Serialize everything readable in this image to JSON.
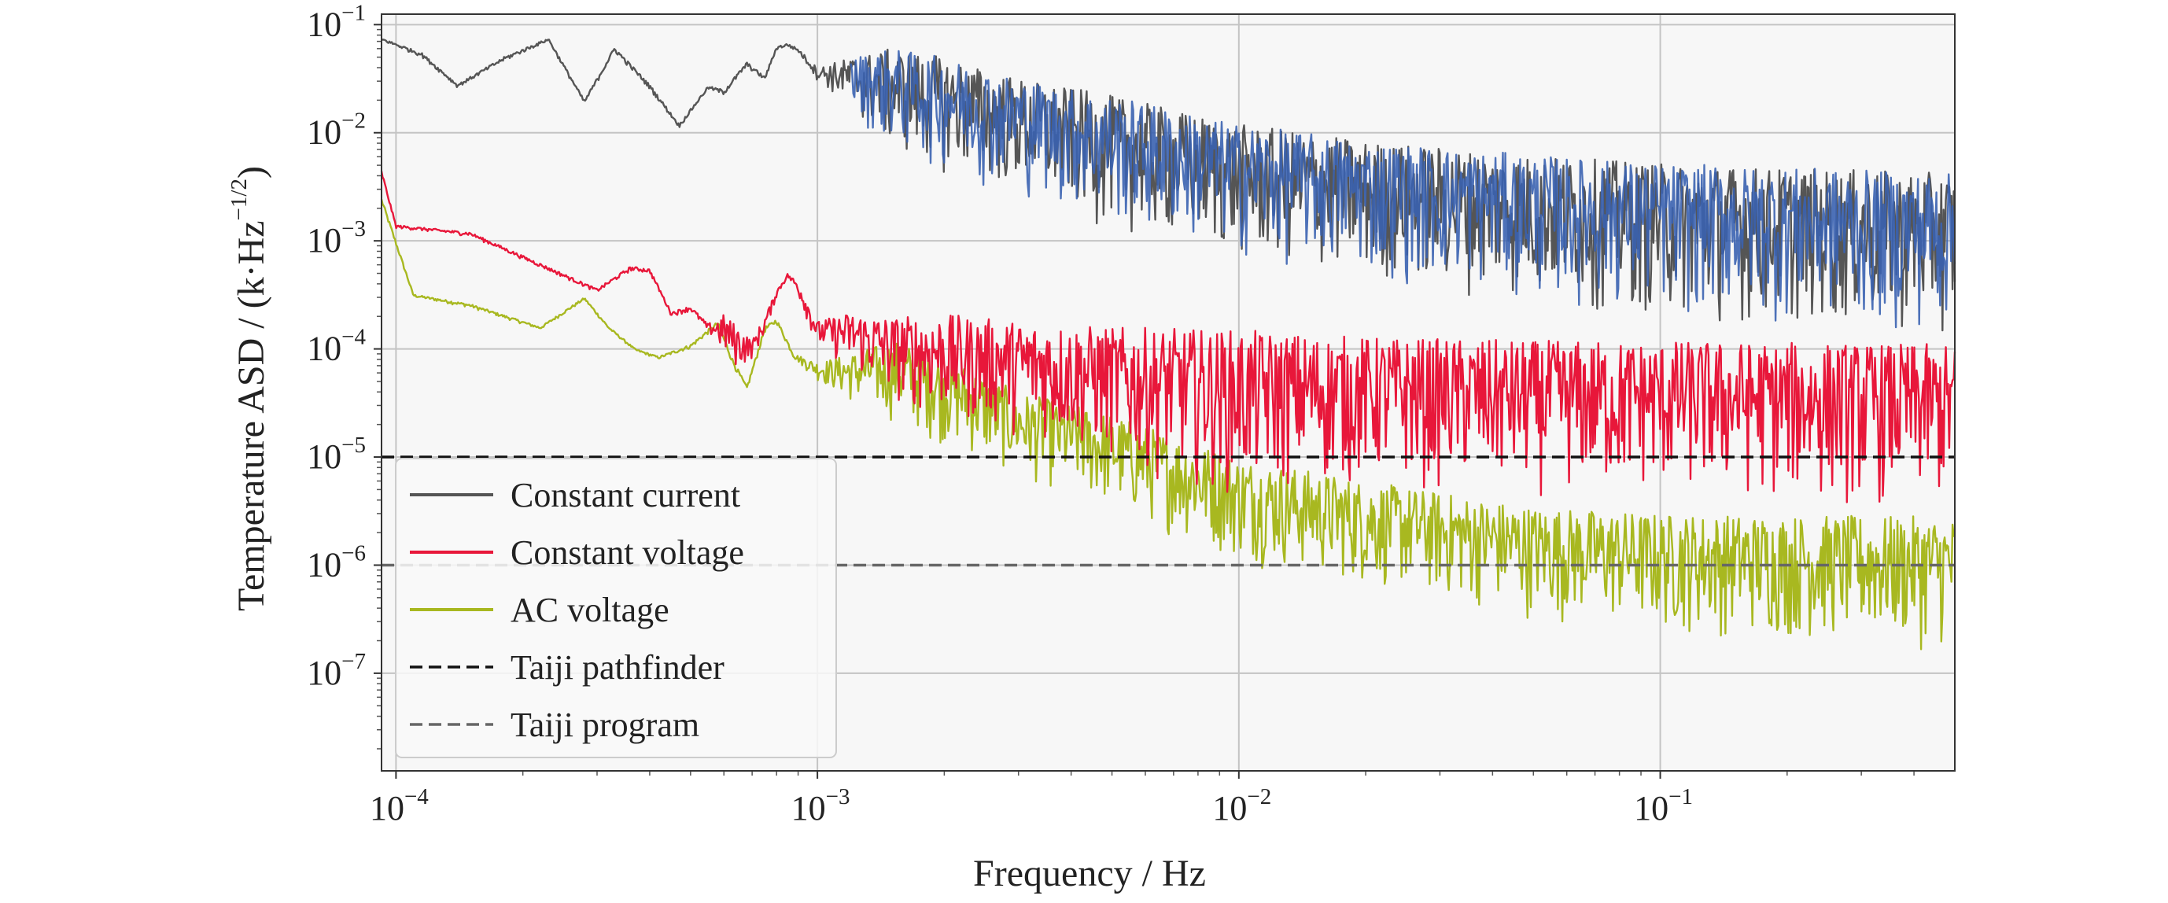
{
  "chart_data": {
    "type": "line",
    "title": "",
    "xlabel": "Frequency / Hz",
    "ylabel": {
      "text": "Temperature ASD / (k·Hz",
      "exponent": "−1/2",
      "close": ")"
    },
    "x_scale": "log",
    "y_scale": "log",
    "xlim": [
      9.24e-05,
      0.5
    ],
    "ylim": [
      1.25e-08,
      0.125
    ],
    "grid": true,
    "legend_position": "lower-left",
    "x_ticks": [
      {
        "value": 0.0001,
        "base": "10",
        "exp": "−4"
      },
      {
        "value": 0.001,
        "base": "10",
        "exp": "−3"
      },
      {
        "value": 0.01,
        "base": "10",
        "exp": "−2"
      },
      {
        "value": 0.1,
        "base": "10",
        "exp": "−1"
      }
    ],
    "y_ticks": [
      {
        "value": 0.1,
        "base": "10",
        "exp": "−1"
      },
      {
        "value": 0.01,
        "base": "10",
        "exp": "−2"
      },
      {
        "value": 0.001,
        "base": "10",
        "exp": "−3"
      },
      {
        "value": 0.0001,
        "base": "10",
        "exp": "−4"
      },
      {
        "value": 1e-05,
        "base": "10",
        "exp": "−5"
      },
      {
        "value": 1e-06,
        "base": "10",
        "exp": "−6"
      },
      {
        "value": 1e-07,
        "base": "10",
        "exp": "−7"
      }
    ],
    "series": [
      {
        "name": "Constant current",
        "color": "#555555",
        "upper": [
          [
            9.24e-05,
            0.075
          ],
          [
            0.000115,
            0.055
          ],
          [
            0.00014,
            0.028
          ],
          [
            0.00018,
            0.05
          ],
          [
            0.00023,
            0.075
          ],
          [
            0.00028,
            0.02
          ],
          [
            0.00033,
            0.062
          ],
          [
            0.0004,
            0.028
          ],
          [
            0.00047,
            0.012
          ],
          [
            0.00055,
            0.027
          ],
          [
            0.0006,
            0.025
          ],
          [
            0.00068,
            0.045
          ],
          [
            0.00075,
            0.033
          ],
          [
            0.0008,
            0.063
          ],
          [
            0.00085,
            0.067
          ],
          [
            0.0009,
            0.06
          ],
          [
            0.001,
            0.04
          ],
          [
            0.0012,
            0.05
          ],
          [
            0.0015,
            0.06
          ],
          [
            0.002,
            0.05
          ],
          [
            0.003,
            0.032
          ],
          [
            0.005,
            0.022
          ],
          [
            0.01,
            0.012
          ],
          [
            0.02,
            0.0085
          ],
          [
            0.05,
            0.0062
          ],
          [
            0.1,
            0.0052
          ],
          [
            0.5,
            0.0042
          ]
        ],
        "lower": [
          [
            9.24e-05,
            0.07
          ],
          [
            0.000115,
            0.05
          ],
          [
            0.00014,
            0.026
          ],
          [
            0.00018,
            0.045
          ],
          [
            0.00023,
            0.07
          ],
          [
            0.00028,
            0.018
          ],
          [
            0.00033,
            0.055
          ],
          [
            0.0004,
            0.025
          ],
          [
            0.00047,
            0.011
          ],
          [
            0.00055,
            0.025
          ],
          [
            0.0006,
            0.022
          ],
          [
            0.00068,
            0.04
          ],
          [
            0.00075,
            0.03
          ],
          [
            0.0008,
            0.058
          ],
          [
            0.00085,
            0.062
          ],
          [
            0.0009,
            0.055
          ],
          [
            0.001,
            0.03
          ],
          [
            0.0012,
            0.015
          ],
          [
            0.0015,
            0.006
          ],
          [
            0.002,
            0.004
          ],
          [
            0.003,
            0.0025
          ],
          [
            0.005,
            0.0012
          ],
          [
            0.01,
            0.0006
          ],
          [
            0.02,
            0.0004
          ],
          [
            0.05,
            0.00025
          ],
          [
            0.1,
            0.00018
          ],
          [
            0.5,
            0.00012
          ]
        ]
      },
      {
        "name": "Constant voltage",
        "color": "#e8173a",
        "upper": [
          [
            9.24e-05,
            0.0045
          ],
          [
            0.0001,
            0.0014
          ],
          [
            0.00015,
            0.0012
          ],
          [
            0.0003,
            0.00036
          ],
          [
            0.00036,
            0.00058
          ],
          [
            0.0004,
            0.00055
          ],
          [
            0.00045,
            0.00022
          ],
          [
            0.0005,
            0.00025
          ],
          [
            0.00055,
            0.00017
          ],
          [
            0.0006,
            0.00021
          ],
          [
            0.00065,
            0.00016
          ],
          [
            0.0007,
            0.00012
          ],
          [
            0.00075,
            0.0002
          ],
          [
            0.0008,
            0.00035
          ],
          [
            0.00085,
            0.0005
          ],
          [
            0.0009,
            0.00042
          ],
          [
            0.001,
            0.00018
          ],
          [
            0.0012,
            0.00022
          ],
          [
            0.0015,
            0.0002
          ],
          [
            0.002,
            0.00021
          ],
          [
            0.003,
            0.00018
          ],
          [
            0.005,
            0.00016
          ],
          [
            0.01,
            0.00015
          ],
          [
            0.02,
            0.00013
          ],
          [
            0.05,
            0.00012
          ],
          [
            0.1,
            0.00012
          ],
          [
            0.5,
            0.00011
          ]
        ],
        "lower": [
          [
            9.24e-05,
            0.004
          ],
          [
            0.0001,
            0.0013
          ],
          [
            0.00015,
            0.0011
          ],
          [
            0.0003,
            0.00033
          ],
          [
            0.00036,
            0.00052
          ],
          [
            0.0004,
            0.0005
          ],
          [
            0.00045,
            0.0002
          ],
          [
            0.0005,
            0.00022
          ],
          [
            0.00055,
            0.00014
          ],
          [
            0.0006,
            8e-05
          ],
          [
            0.00065,
            6e-05
          ],
          [
            0.0007,
            8e-05
          ],
          [
            0.00075,
            0.00013
          ],
          [
            0.0008,
            0.0003
          ],
          [
            0.00085,
            0.00045
          ],
          [
            0.0009,
            0.0003
          ],
          [
            0.001,
            0.0001
          ],
          [
            0.0012,
            6e-05
          ],
          [
            0.0015,
            3e-05
          ],
          [
            0.002,
            2e-05
          ],
          [
            0.003,
            1.5e-05
          ],
          [
            0.005,
            8e-06
          ],
          [
            0.01,
            4e-06
          ],
          [
            0.02,
            5e-06
          ],
          [
            0.05,
            4e-06
          ],
          [
            0.1,
            4e-06
          ],
          [
            0.5,
            3e-06
          ]
        ]
      },
      {
        "name": "AC voltage",
        "color": "#a8b820",
        "upper": [
          [
            9.24e-05,
            0.0025
          ],
          [
            0.00011,
            0.00032
          ],
          [
            0.00015,
            0.00026
          ],
          [
            0.00022,
            0.00016
          ],
          [
            0.00028,
            0.0003
          ],
          [
            0.00032,
            0.00016
          ],
          [
            0.00037,
            0.0001
          ],
          [
            0.00042,
            8.5e-05
          ],
          [
            0.0005,
            0.00011
          ],
          [
            0.00058,
            0.00018
          ],
          [
            0.00063,
            8e-05
          ],
          [
            0.00068,
            4.5e-05
          ],
          [
            0.00075,
            0.00016
          ],
          [
            0.0008,
            0.00019
          ],
          [
            0.00088,
            9e-05
          ],
          [
            0.001,
            7.5e-05
          ],
          [
            0.0012,
            9e-05
          ],
          [
            0.0015,
            0.00012
          ],
          [
            0.002,
            9e-05
          ],
          [
            0.003,
            4e-05
          ],
          [
            0.005,
            2.5e-05
          ],
          [
            0.01,
            1e-05
          ],
          [
            0.02,
            6e-06
          ],
          [
            0.05,
            3.5e-06
          ],
          [
            0.1,
            3e-06
          ],
          [
            0.5,
            2.8e-06
          ]
        ],
        "lower": [
          [
            9.24e-05,
            0.0022
          ],
          [
            0.00011,
            0.0003
          ],
          [
            0.00015,
            0.00024
          ],
          [
            0.00022,
            0.00015
          ],
          [
            0.00028,
            0.00028
          ],
          [
            0.00032,
            0.00015
          ],
          [
            0.00037,
            9.5e-05
          ],
          [
            0.00042,
            8e-05
          ],
          [
            0.0005,
            0.0001
          ],
          [
            0.00058,
            0.00016
          ],
          [
            0.00063,
            7e-05
          ],
          [
            0.00068,
            4e-05
          ],
          [
            0.00075,
            0.00014
          ],
          [
            0.0008,
            0.00017
          ],
          [
            0.00088,
            8e-05
          ],
          [
            0.001,
            5e-05
          ],
          [
            0.0012,
            3e-05
          ],
          [
            0.0015,
            2e-05
          ],
          [
            0.002,
            1.2e-05
          ],
          [
            0.003,
            6e-06
          ],
          [
            0.005,
            3e-06
          ],
          [
            0.01,
            1e-06
          ],
          [
            0.02,
            6e-07
          ],
          [
            0.05,
            3e-07
          ],
          [
            0.1,
            2.2e-07
          ],
          [
            0.5,
            1.5e-07
          ]
        ]
      },
      {
        "name": "Taiji pathfinder",
        "color": "#111111",
        "constant": 1e-05
      },
      {
        "name": "Taiji program",
        "color": "#666666",
        "constant": 1e-06
      }
    ]
  }
}
